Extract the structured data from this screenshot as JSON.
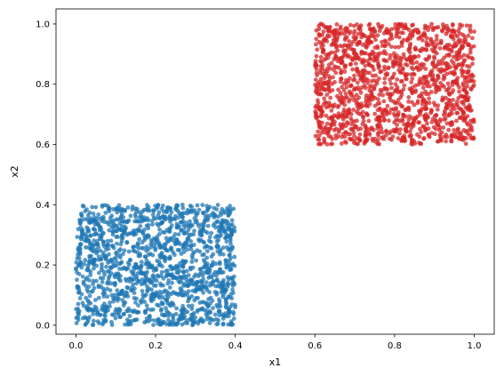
{
  "chart_data": {
    "type": "scatter",
    "title": "",
    "xlabel": "x1",
    "ylabel": "x2",
    "xlim": [
      -0.05,
      1.05
    ],
    "ylim": [
      -0.03,
      1.05
    ],
    "grid": false,
    "legend": "none",
    "x_ticks": [
      0.0,
      0.2,
      0.4,
      0.6,
      0.8,
      1.0
    ],
    "x_tick_labels": [
      "0.0",
      "0.2",
      "0.4",
      "0.6",
      "0.8",
      "1.0"
    ],
    "y_ticks": [
      0.0,
      0.2,
      0.4,
      0.6,
      0.8,
      1.0
    ],
    "y_tick_labels": [
      "0.0",
      "0.2",
      "0.4",
      "0.6",
      "0.8",
      "1.0"
    ],
    "series": [
      {
        "color": "#1f77b4",
        "distribution": "uniform",
        "n_points": 1500,
        "x_range": [
          0.0,
          0.4
        ],
        "y_range": [
          0.0,
          0.4
        ]
      },
      {
        "color": "#d62728",
        "distribution": "uniform",
        "n_points": 1500,
        "x_range": [
          0.6,
          1.0
        ],
        "y_range": [
          0.6,
          1.0
        ]
      }
    ]
  }
}
